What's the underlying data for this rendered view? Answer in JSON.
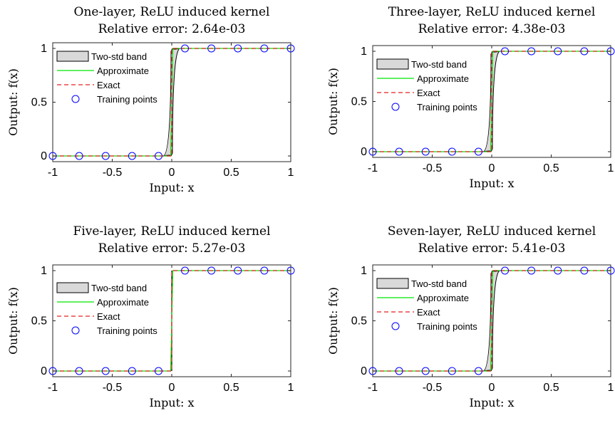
{
  "chart_data": [
    {
      "type": "line",
      "title": "One-layer, ReLU induced kernel",
      "subtitle": "Relative error: 2.64e-03",
      "xlabel": "Input: x",
      "ylabel": "Output: f(x)",
      "xlim": [
        -1,
        1
      ],
      "ylim": [
        -0.05,
        1.05
      ],
      "xticks": [
        "-1",
        "-0.5",
        "0",
        "0.5",
        "1"
      ],
      "yticks": [
        "0",
        "0.5",
        "1"
      ],
      "legend": [
        "Two-std band",
        "Approximate",
        "Exact",
        "Training points"
      ],
      "legend_position": "center-left",
      "training_points": {
        "x": [
          -1,
          -0.7778,
          -0.5556,
          -0.3333,
          -0.1111,
          0.1111,
          0.3333,
          0.5556,
          0.7778,
          1
        ],
        "y": [
          0,
          0,
          0,
          0,
          0,
          1,
          1,
          1,
          1,
          1
        ]
      },
      "band_halfwidth": 0.12
    },
    {
      "type": "line",
      "title": "Three-layer, ReLU induced kernel",
      "subtitle": "Relative error: 4.38e-03",
      "xlabel": "Input: x",
      "ylabel": "Output: f(x)",
      "xlim": [
        -1,
        1
      ],
      "ylim": [
        -0.05,
        1.05
      ],
      "xticks": [
        "-1",
        "-0.5",
        "0",
        "0.5",
        "1"
      ],
      "yticks": [
        "0",
        "0.5",
        "1"
      ],
      "legend": [
        "Two-std band",
        "Approximate",
        "Exact",
        "Training points"
      ],
      "legend_position": "center-left",
      "training_points": {
        "x": [
          -1,
          -0.7778,
          -0.5556,
          -0.3333,
          -0.1111,
          0.1111,
          0.3333,
          0.5556,
          0.7778,
          1
        ],
        "y": [
          0,
          0,
          0,
          0,
          0,
          1,
          1,
          1,
          1,
          1
        ]
      },
      "band_halfwidth": 0.1
    },
    {
      "type": "line",
      "title": "Five-layer, ReLU induced kernel",
      "subtitle": "Relative error: 5.27e-03",
      "xlabel": "Input: x",
      "ylabel": "Output: f(x)",
      "xlim": [
        -1,
        1
      ],
      "ylim": [
        -0.05,
        1.05
      ],
      "xticks": [
        "-1",
        "-0.5",
        "0",
        "0.5",
        "1"
      ],
      "yticks": [
        "0",
        "0.5",
        "1"
      ],
      "legend": [
        "Two-std band",
        "Approximate",
        "Exact",
        "Training points"
      ],
      "legend_position": "center-left",
      "training_points": {
        "x": [
          -1,
          -0.7778,
          -0.5556,
          -0.3333,
          -0.1111,
          0.1111,
          0.3333,
          0.5556,
          0.7778,
          1
        ],
        "y": [
          0,
          0,
          0,
          0,
          0,
          1,
          1,
          1,
          1,
          1
        ]
      },
      "band_halfwidth": 0.0
    },
    {
      "type": "line",
      "title": "Seven-layer, ReLU induced kernel",
      "subtitle": "Relative error: 5.41e-03",
      "xlabel": "Input: x",
      "ylabel": "Output: f(x)",
      "xlim": [
        -1,
        1
      ],
      "ylim": [
        -0.05,
        1.05
      ],
      "xticks": [
        "-1",
        "-0.5",
        "0",
        "0.5",
        "1"
      ],
      "yticks": [
        "0",
        "0.5",
        "1"
      ],
      "legend": [
        "Two-std band",
        "Approximate",
        "Exact",
        "Training points"
      ],
      "legend_position": "center-left",
      "training_points": {
        "x": [
          -1,
          -0.7778,
          -0.5556,
          -0.3333,
          -0.1111,
          0.1111,
          0.3333,
          0.5556,
          0.7778,
          1
        ],
        "y": [
          0,
          0,
          0,
          0,
          0,
          1,
          1,
          1,
          1,
          1
        ]
      },
      "band_halfwidth": 0.1
    }
  ],
  "colors": {
    "band_fill": "#d9d9d9",
    "band_edge": "#000000",
    "approximate": "#00e600",
    "exact": "#e62020",
    "training_points": "#0000ff"
  }
}
